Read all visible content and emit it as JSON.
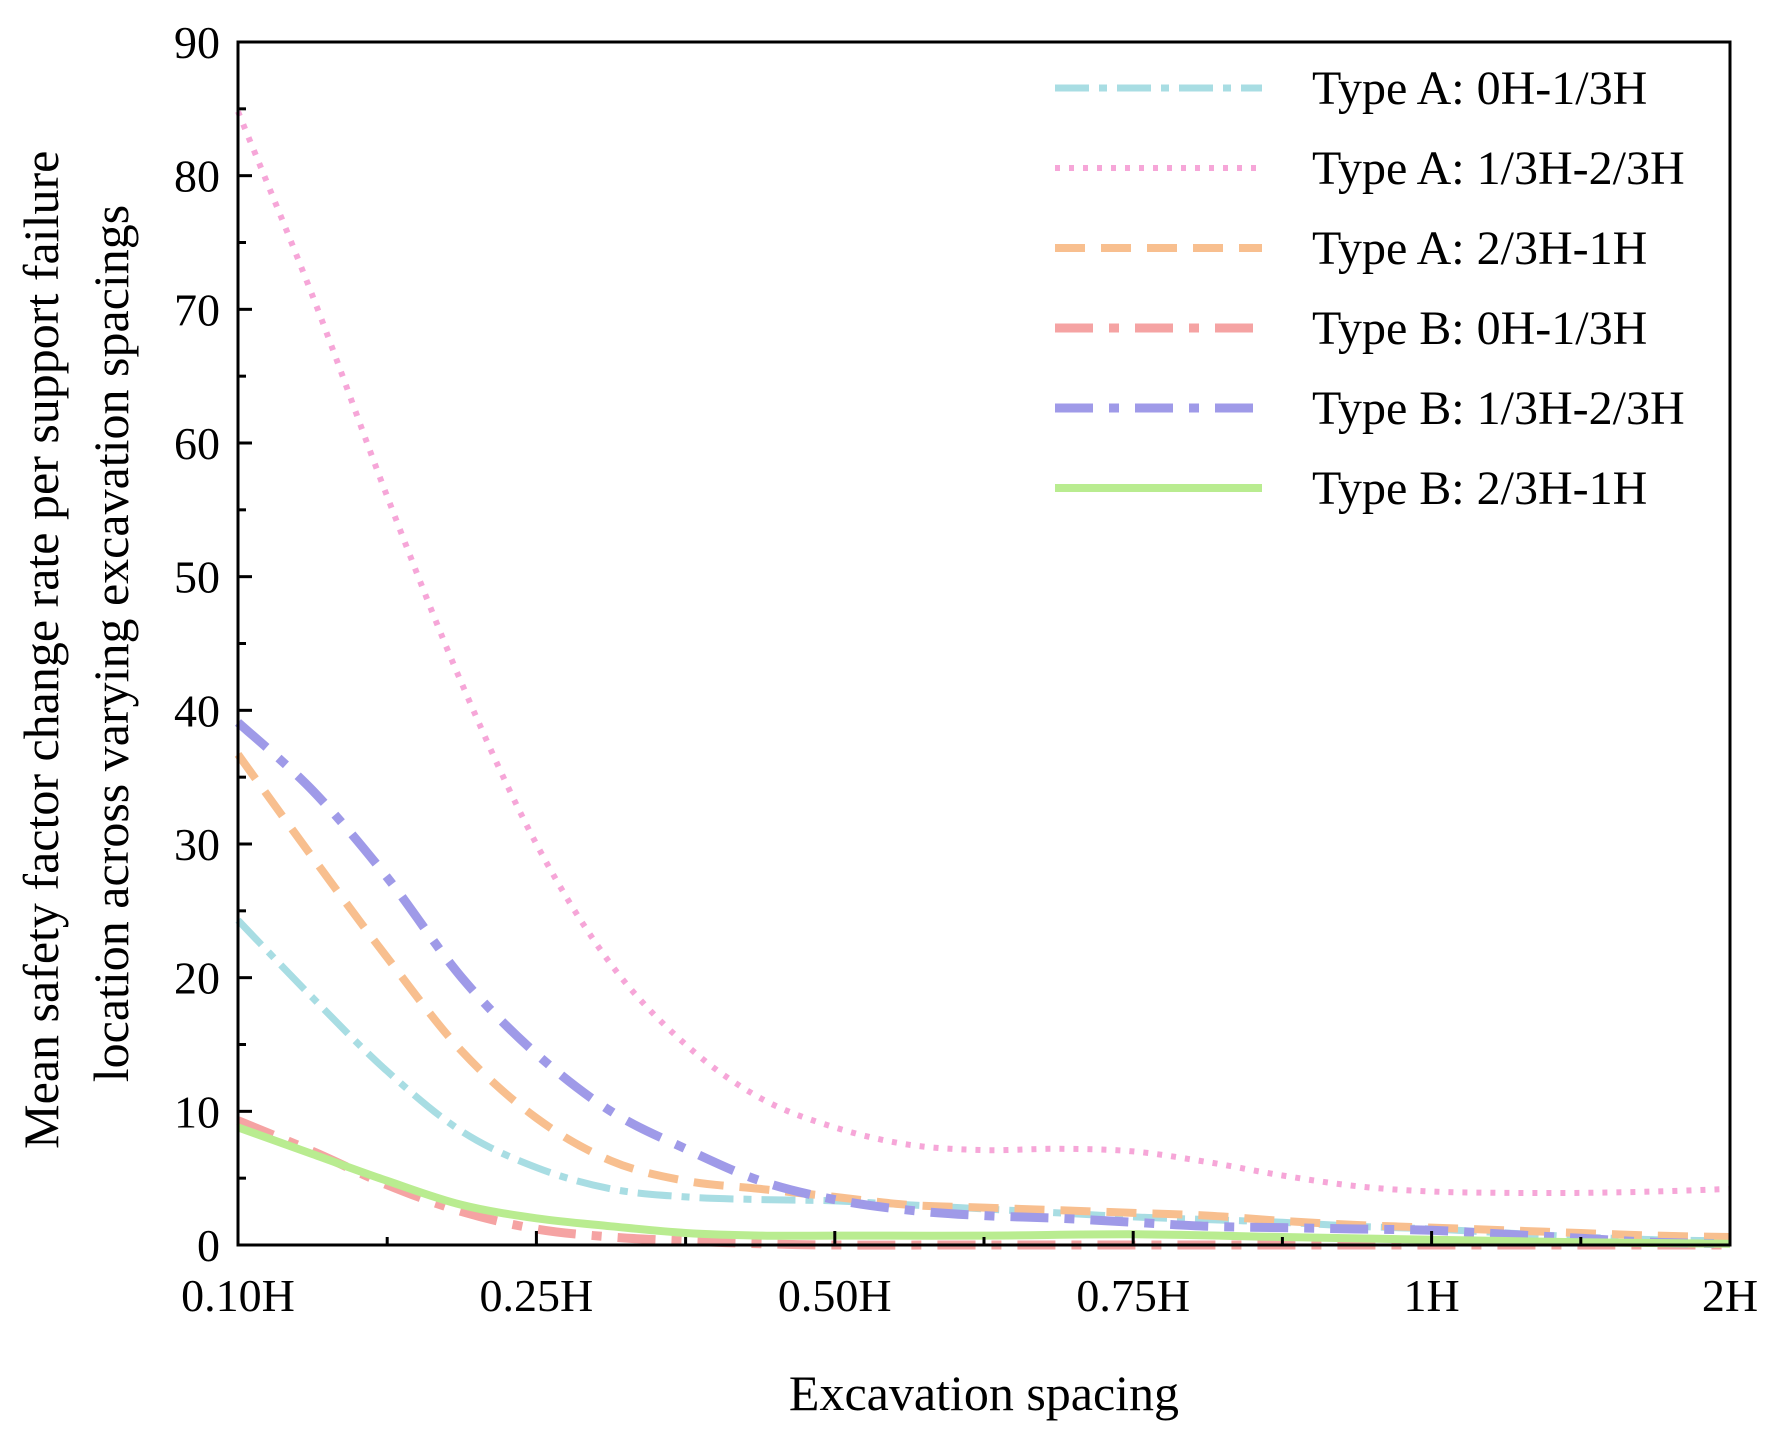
{
  "chart_data": {
    "type": "line",
    "xlabel": "Excavation spacing",
    "ylabel_lines": [
      "Mean safety factor change rate per support failure",
      "location across varying excavation spacings"
    ],
    "categories": [
      "0.10H",
      "0.25H",
      "0.50H",
      "0.75H",
      "1H",
      "2H"
    ],
    "y_ticks": [
      "0",
      "10",
      "20",
      "30",
      "40",
      "50",
      "60",
      "70",
      "80",
      "90"
    ],
    "ylim": [
      0,
      90
    ],
    "grid": false,
    "legend_position": "top-right",
    "series": [
      {
        "name": "Type A: 0H-1/3H",
        "color": "#a8dde3",
        "style": "dash-dot",
        "points": [
          [
            0,
            24.3
          ],
          [
            0.25,
            18.5
          ],
          [
            0.5,
            13.0
          ],
          [
            0.75,
            8.5
          ],
          [
            1,
            5.8
          ],
          [
            1.25,
            4.2
          ],
          [
            1.5,
            3.6
          ],
          [
            1.75,
            3.4
          ],
          [
            2,
            3.3
          ],
          [
            2.25,
            3.0
          ],
          [
            2.5,
            2.7
          ],
          [
            2.75,
            2.4
          ],
          [
            3,
            2.1
          ],
          [
            3.25,
            1.9
          ],
          [
            3.5,
            1.7
          ],
          [
            3.75,
            1.4
          ],
          [
            4,
            1.2
          ],
          [
            4.25,
            0.9
          ],
          [
            4.5,
            0.6
          ],
          [
            4.75,
            0.4
          ],
          [
            5,
            0.3
          ]
        ]
      },
      {
        "name": "Type A: 1/3H-2/3H",
        "color": "#f6a6d8",
        "style": "dotted",
        "points": [
          [
            0,
            84.8
          ],
          [
            0.25,
            71.0
          ],
          [
            0.5,
            56.0
          ],
          [
            0.75,
            42.0
          ],
          [
            1,
            30.0
          ],
          [
            1.25,
            21.0
          ],
          [
            1.5,
            15.0
          ],
          [
            1.75,
            11.0
          ],
          [
            2,
            8.8
          ],
          [
            2.25,
            7.5
          ],
          [
            2.5,
            7.1
          ],
          [
            2.75,
            7.2
          ],
          [
            3,
            7.0
          ],
          [
            3.25,
            6.2
          ],
          [
            3.5,
            5.2
          ],
          [
            3.75,
            4.4
          ],
          [
            4,
            4.0
          ],
          [
            4.25,
            3.9
          ],
          [
            4.5,
            3.9
          ],
          [
            4.75,
            4.0
          ],
          [
            5,
            4.2
          ]
        ]
      },
      {
        "name": "Type A: 2/3H-1H",
        "color": "#f8bf8f",
        "style": "dashed",
        "points": [
          [
            0,
            36.7
          ],
          [
            0.25,
            29.0
          ],
          [
            0.5,
            21.5
          ],
          [
            0.75,
            14.5
          ],
          [
            1,
            9.5
          ],
          [
            1.25,
            6.3
          ],
          [
            1.5,
            4.8
          ],
          [
            1.75,
            4.2
          ],
          [
            2,
            3.6
          ],
          [
            2.25,
            3.0
          ],
          [
            2.5,
            2.8
          ],
          [
            2.75,
            2.6
          ],
          [
            3,
            2.4
          ],
          [
            3.25,
            2.2
          ],
          [
            3.5,
            1.8
          ],
          [
            3.75,
            1.5
          ],
          [
            4,
            1.3
          ],
          [
            4.25,
            1.1
          ],
          [
            4.5,
            0.9
          ],
          [
            4.75,
            0.7
          ],
          [
            5,
            0.6
          ]
        ]
      },
      {
        "name": "Type B: 0H-1/3H",
        "color": "#f5a3a3",
        "style": "dash-dot-long",
        "points": [
          [
            0,
            9.3
          ],
          [
            0.25,
            7.0
          ],
          [
            0.5,
            4.5
          ],
          [
            0.75,
            2.5
          ],
          [
            1,
            1.2
          ],
          [
            1.25,
            0.6
          ],
          [
            1.5,
            0.3
          ],
          [
            1.75,
            0.1
          ],
          [
            2,
            0.0
          ],
          [
            2.5,
            0.0
          ],
          [
            3,
            0.0
          ],
          [
            3.5,
            0.0
          ],
          [
            4,
            0.0
          ],
          [
            4.5,
            0.0
          ],
          [
            5,
            0.0
          ]
        ]
      },
      {
        "name": "Type B: 1/3H-2/3H",
        "color": "#9f9ae8",
        "style": "dash-dot-long",
        "points": [
          [
            0,
            39.1
          ],
          [
            0.25,
            34.0
          ],
          [
            0.5,
            27.5
          ],
          [
            0.75,
            20.0
          ],
          [
            1,
            14.3
          ],
          [
            1.25,
            10.0
          ],
          [
            1.5,
            7.2
          ],
          [
            1.75,
            4.8
          ],
          [
            2,
            3.4
          ],
          [
            2.25,
            2.6
          ],
          [
            2.5,
            2.2
          ],
          [
            2.75,
            2.0
          ],
          [
            3,
            1.7
          ],
          [
            3.25,
            1.4
          ],
          [
            3.5,
            1.3
          ],
          [
            3.75,
            1.2
          ],
          [
            4,
            1.1
          ],
          [
            4.25,
            0.8
          ],
          [
            4.5,
            0.5
          ],
          [
            4.75,
            0.2
          ],
          [
            5,
            0.1
          ]
        ]
      },
      {
        "name": "Type B: 2/3H-1H",
        "color": "#b9ec90",
        "style": "solid",
        "points": [
          [
            0,
            8.8
          ],
          [
            0.25,
            6.8
          ],
          [
            0.5,
            4.8
          ],
          [
            0.75,
            3.0
          ],
          [
            1,
            2.0
          ],
          [
            1.25,
            1.4
          ],
          [
            1.5,
            0.9
          ],
          [
            1.75,
            0.7
          ],
          [
            2,
            0.7
          ],
          [
            2.5,
            0.7
          ],
          [
            3,
            0.8
          ],
          [
            3.5,
            0.6
          ],
          [
            4,
            0.4
          ],
          [
            4.5,
            0.2
          ],
          [
            5,
            0.1
          ]
        ]
      }
    ]
  }
}
